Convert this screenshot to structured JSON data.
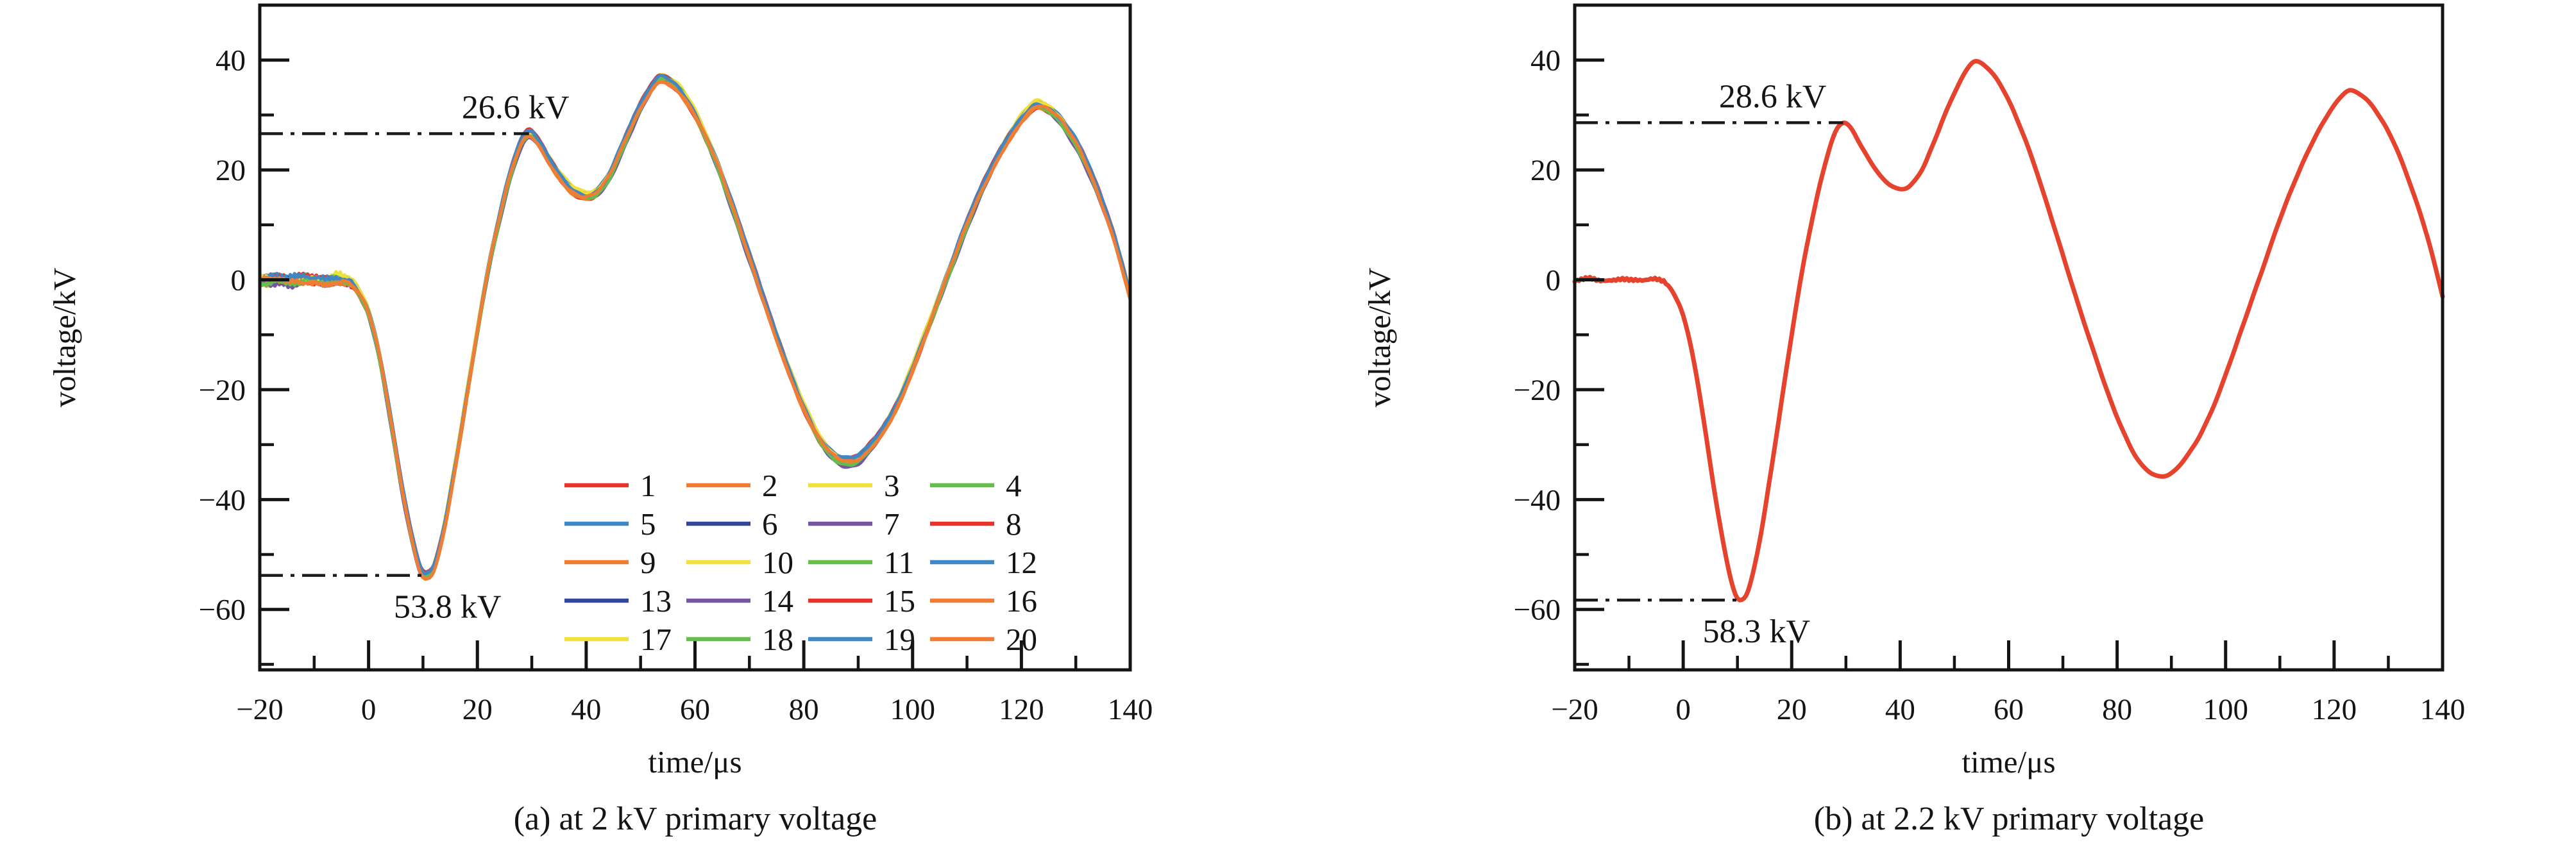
{
  "figure": {
    "captions": {
      "a": "(a) at 2 kV primary voltage",
      "b": "(b) at 2.2 kV primary voltage"
    }
  },
  "chart_data": [
    {
      "type": "line",
      "panel": "a",
      "xlabel": "time/μs",
      "ylabel": "voltage/kV",
      "xlim": [
        -20,
        140
      ],
      "ylim": [
        -71,
        50
      ],
      "xticks": [
        -20,
        0,
        20,
        40,
        60,
        80,
        100,
        120,
        140
      ],
      "yticks": [
        40,
        20,
        0,
        -20,
        -40,
        -60
      ],
      "minor_step": 10,
      "grid": false,
      "legend": {
        "show": true,
        "position": "lower-right-inside",
        "rows": 5,
        "cols": 4
      },
      "annotations": [
        {
          "text": "26.6 kV",
          "value_kv": 26.6,
          "line_from_t": -20,
          "line_to_t": 29.5,
          "text_t": 27,
          "side": "above"
        },
        {
          "text": "53.8 kV",
          "value_kv": -53.8,
          "line_from_t": -20,
          "line_to_t": 10.5,
          "text_t": 14.5,
          "side": "below"
        }
      ],
      "series": [
        {
          "name": "1",
          "color": "#e93228"
        },
        {
          "name": "2",
          "color": "#ef7d33"
        },
        {
          "name": "3",
          "color": "#efe03c"
        },
        {
          "name": "4",
          "color": "#67bd4a"
        },
        {
          "name": "5",
          "color": "#3f88c5"
        },
        {
          "name": "6",
          "color": "#32479c"
        },
        {
          "name": "7",
          "color": "#7655a2"
        },
        {
          "name": "8",
          "color": "#e93228"
        },
        {
          "name": "9",
          "color": "#ef7d33"
        },
        {
          "name": "10",
          "color": "#efe03c"
        },
        {
          "name": "11",
          "color": "#67bd4a"
        },
        {
          "name": "12",
          "color": "#3f88c5"
        },
        {
          "name": "13",
          "color": "#32479c"
        },
        {
          "name": "14",
          "color": "#7655a2"
        },
        {
          "name": "15",
          "color": "#e93228"
        },
        {
          "name": "16",
          "color": "#ef7d33"
        },
        {
          "name": "17",
          "color": "#efe03c"
        },
        {
          "name": "18",
          "color": "#67bd4a"
        },
        {
          "name": "19",
          "color": "#3f88c5"
        },
        {
          "name": "20",
          "color": "#ef7d33"
        }
      ],
      "waveform_keypoints": {
        "t": [
          -20,
          -17,
          -14,
          -11,
          -8,
          -6,
          -4.5,
          -3,
          -1.5,
          0,
          2,
          4,
          6,
          8,
          9.5,
          10.5,
          12,
          14,
          16,
          18,
          20,
          22,
          24,
          26,
          28,
          29.5,
          31,
          33,
          35,
          37,
          39,
          40.5,
          42,
          44,
          46,
          48,
          50,
          52,
          53.5,
          55,
          57,
          59,
          61,
          64,
          67,
          70,
          73,
          76,
          79,
          82,
          84,
          86,
          88,
          90,
          92,
          95,
          98,
          101,
          104,
          107,
          110,
          113,
          116,
          119,
          121,
          122.5,
          124,
          126,
          128,
          131,
          134,
          137,
          139,
          140
        ],
        "v": [
          -0.2,
          0.2,
          -0.2,
          0.2,
          -0.2,
          0.2,
          0,
          -0.7,
          -2.8,
          -6,
          -13.9,
          -25,
          -37,
          -47.2,
          -52.7,
          -53.8,
          -52.3,
          -44.4,
          -33.3,
          -21.3,
          -9.3,
          1.9,
          11.1,
          19,
          24.8,
          26.6,
          25.4,
          22.2,
          19.2,
          16.8,
          15.5,
          15.3,
          16,
          18.5,
          22.7,
          27.3,
          31.5,
          35,
          36.7,
          36.4,
          34.8,
          32,
          28.2,
          21.3,
          13,
          4.2,
          -4.6,
          -13,
          -20.8,
          -27.3,
          -30.5,
          -32.4,
          -33.1,
          -32.6,
          -30.7,
          -26.6,
          -20.8,
          -13.4,
          -5.6,
          2.3,
          10.2,
          17.1,
          23.1,
          28,
          30.5,
          31.8,
          31.6,
          30.3,
          28,
          23.1,
          16.2,
          7.9,
          0.9,
          -2.8
        ]
      },
      "peak_annotated_kv": {
        "first_positive_peak": 26.6,
        "main_negative_trough": -53.8
      }
    },
    {
      "type": "line",
      "panel": "b",
      "xlabel": "time/μs",
      "ylabel": "voltage/kV",
      "xlim": [
        -20,
        140
      ],
      "ylim": [
        -71,
        50
      ],
      "xticks": [
        -20,
        0,
        20,
        40,
        60,
        80,
        100,
        120,
        140
      ],
      "yticks": [
        40,
        20,
        0,
        -20,
        -40,
        -60
      ],
      "minor_step": 10,
      "grid": false,
      "legend": {
        "show": false
      },
      "annotations": [
        {
          "text": "28.6 kV",
          "value_kv": 28.6,
          "line_from_t": -20,
          "line_to_t": 29.5,
          "text_t": 16.5,
          "side": "above"
        },
        {
          "text": "58.3 kV",
          "value_kv": -58.3,
          "line_from_t": -20,
          "line_to_t": 10.5,
          "text_t": 13.5,
          "side": "below"
        }
      ],
      "series": [
        {
          "name": "",
          "color": "#e5432d"
        }
      ],
      "waveform_keypoints": {
        "t": [
          -20,
          -17,
          -14,
          -11,
          -8,
          -6,
          -4.5,
          -3,
          -1.5,
          0,
          2,
          4,
          6,
          8,
          9.5,
          10.5,
          12,
          14,
          16,
          18,
          20,
          22,
          24,
          26,
          28,
          29.5,
          31,
          33,
          35,
          37,
          39,
          40.5,
          42,
          44,
          46,
          48,
          50,
          52,
          53.5,
          55,
          57,
          59,
          61,
          64,
          67,
          70,
          73,
          76,
          79,
          82,
          84,
          86,
          88,
          90,
          92,
          95,
          98,
          101,
          104,
          107,
          110,
          113,
          116,
          119,
          121,
          122.5,
          124,
          126,
          128,
          131,
          134,
          137,
          139,
          140
        ],
        "v": [
          -0.2,
          0.25,
          -0.25,
          0.2,
          -0.2,
          0.25,
          0,
          -0.8,
          -3,
          -6.5,
          -15,
          -27,
          -40,
          -51,
          -57,
          -58.3,
          -56.5,
          -48,
          -36,
          -23,
          -10,
          2,
          12,
          20.5,
          26.8,
          28.6,
          27.5,
          24,
          20.8,
          18.2,
          16.8,
          16.5,
          17.3,
          20,
          24.5,
          29.5,
          34,
          37.8,
          39.7,
          39.4,
          37.6,
          34.6,
          30.5,
          23,
          14,
          4.5,
          -5,
          -14,
          -22.5,
          -29.5,
          -33,
          -35,
          -35.8,
          -35.2,
          -33.2,
          -28.8,
          -22.5,
          -14.5,
          -6,
          2.5,
          11,
          18.5,
          25,
          30.3,
          33,
          34.4,
          34.2,
          32.8,
          30.3,
          25,
          17.5,
          8.5,
          1,
          -3
        ]
      },
      "peak_annotated_kv": {
        "first_positive_peak": 28.6,
        "main_negative_trough": -58.3
      }
    }
  ],
  "style_colors": {
    "frame_and_text": "#141414",
    "annotation_line": "#1a1a1a"
  }
}
